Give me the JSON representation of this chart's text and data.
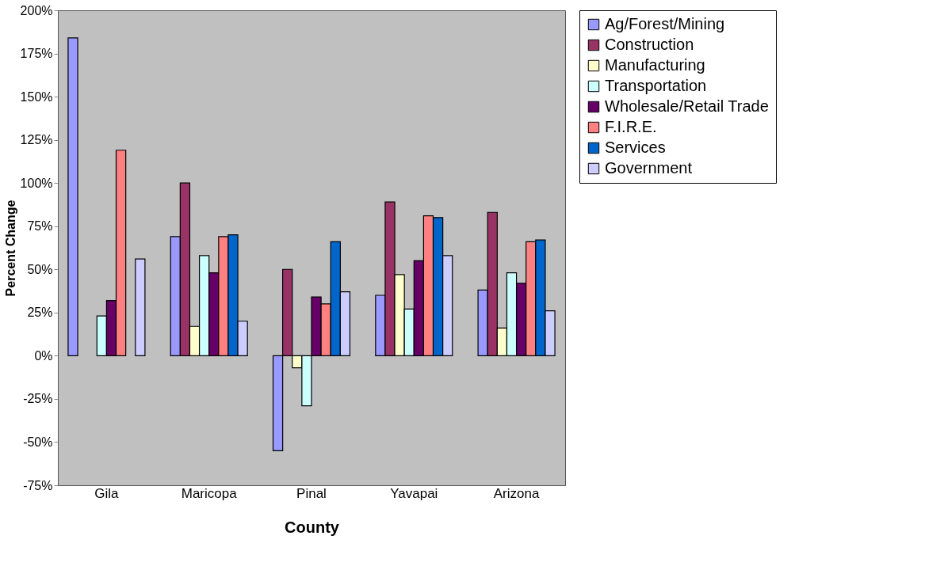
{
  "chart_data": {
    "type": "bar",
    "xlabel": "County",
    "ylabel": "Percent Change",
    "categories": [
      "Gila",
      "Maricopa",
      "Pinal",
      "Yavapai",
      "Arizona"
    ],
    "series": [
      {
        "name": "Ag/Forest/Mining",
        "color": "#9999ff",
        "values": [
          184,
          69,
          -55,
          35,
          38
        ]
      },
      {
        "name": "Construction",
        "color": "#993366",
        "values": [
          null,
          100,
          50,
          89,
          83
        ]
      },
      {
        "name": "Manufacturing",
        "color": "#ffffcc",
        "values": [
          null,
          17,
          -7,
          47,
          16
        ]
      },
      {
        "name": "Transportation",
        "color": "#ccffff",
        "values": [
          23,
          58,
          -29,
          27,
          48
        ]
      },
      {
        "name": "Wholesale/Retail Trade",
        "color": "#660066",
        "values": [
          32,
          48,
          34,
          55,
          42
        ]
      },
      {
        "name": "F.I.R.E.",
        "color": "#ff8080",
        "values": [
          119,
          69,
          30,
          81,
          66
        ]
      },
      {
        "name": "Services",
        "color": "#0066cc",
        "values": [
          null,
          70,
          66,
          80,
          67
        ]
      },
      {
        "name": "Government",
        "color": "#ccccff",
        "values": [
          56,
          20,
          37,
          58,
          26
        ]
      }
    ],
    "ylim": [
      -75,
      200
    ],
    "yticks": [
      {
        "value": -75,
        "label": "-75%"
      },
      {
        "value": -50,
        "label": "-50%"
      },
      {
        "value": -25,
        "label": "-25%"
      },
      {
        "value": 0,
        "label": "0%"
      },
      {
        "value": 25,
        "label": "25%"
      },
      {
        "value": 50,
        "label": "50%"
      },
      {
        "value": 75,
        "label": "75%"
      },
      {
        "value": 100,
        "label": "100%"
      },
      {
        "value": 125,
        "label": "125%"
      },
      {
        "value": 150,
        "label": "150%"
      },
      {
        "value": 175,
        "label": "175%"
      },
      {
        "value": 200,
        "label": "200%"
      }
    ],
    "grid": false,
    "legend": "right"
  }
}
